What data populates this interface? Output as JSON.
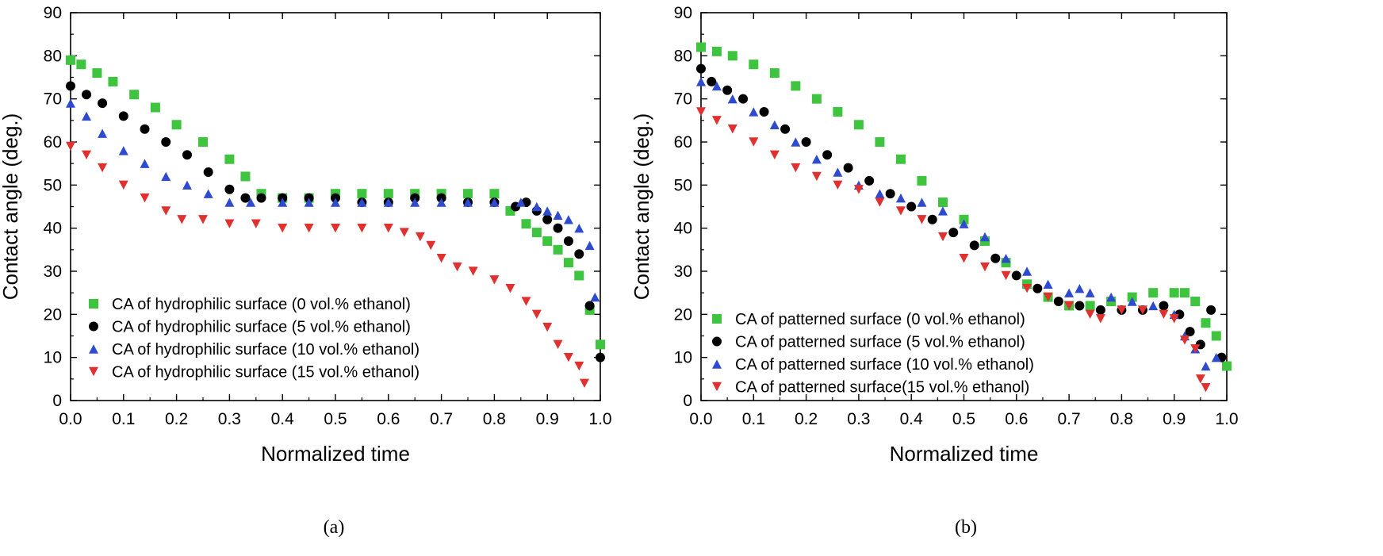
{
  "chart_data": [
    {
      "type": "scatter",
      "panel_label": "(a)",
      "title": "",
      "xlabel": "Normalized time",
      "ylabel": "Contact angle (deg.)",
      "xlim": [
        0,
        1
      ],
      "ylim": [
        0,
        90
      ],
      "xticks": [
        "0.0",
        "0.1",
        "0.2",
        "0.3",
        "0.4",
        "0.5",
        "0.6",
        "0.7",
        "0.8",
        "0.9",
        "1.0"
      ],
      "yticks": [
        "0",
        "10",
        "20",
        "30",
        "40",
        "50",
        "60",
        "70",
        "80",
        "90"
      ],
      "legend_position": "bottom-left",
      "series": [
        {
          "name": "CA of hydrophilic surface (0 vol.% ethanol)",
          "color": "#3ec43e",
          "marker": "square",
          "x": [
            0.0,
            0.02,
            0.05,
            0.08,
            0.12,
            0.16,
            0.2,
            0.25,
            0.3,
            0.33,
            0.36,
            0.4,
            0.45,
            0.5,
            0.55,
            0.6,
            0.65,
            0.7,
            0.75,
            0.8,
            0.83,
            0.86,
            0.88,
            0.9,
            0.92,
            0.94,
            0.96,
            0.98,
            1.0
          ],
          "y": [
            79,
            78,
            76,
            74,
            71,
            68,
            64,
            60,
            56,
            52,
            48,
            47,
            47,
            48,
            48,
            48,
            48,
            48,
            48,
            48,
            44,
            41,
            39,
            37,
            35,
            32,
            29,
            21,
            13
          ]
        },
        {
          "name": "CA of hydrophilic surface (5 vol.% ethanol)",
          "color": "#000000",
          "marker": "circle",
          "x": [
            0.0,
            0.03,
            0.06,
            0.1,
            0.14,
            0.18,
            0.22,
            0.26,
            0.3,
            0.33,
            0.36,
            0.4,
            0.45,
            0.5,
            0.55,
            0.6,
            0.65,
            0.7,
            0.75,
            0.8,
            0.84,
            0.86,
            0.88,
            0.9,
            0.92,
            0.94,
            0.96,
            0.98,
            1.0
          ],
          "y": [
            73,
            71,
            69,
            66,
            63,
            60,
            57,
            53,
            49,
            47,
            47,
            47,
            47,
            47,
            46,
            46,
            47,
            47,
            46,
            46,
            45,
            46,
            44,
            42,
            40,
            37,
            34,
            22,
            10
          ]
        },
        {
          "name": "CA of hydrophilic surface (10 vol.% ethanol)",
          "color": "#2e4bd0",
          "marker": "triangle-up",
          "x": [
            0.0,
            0.03,
            0.06,
            0.1,
            0.14,
            0.18,
            0.22,
            0.26,
            0.3,
            0.34,
            0.4,
            0.45,
            0.5,
            0.55,
            0.6,
            0.65,
            0.7,
            0.75,
            0.8,
            0.85,
            0.88,
            0.9,
            0.92,
            0.94,
            0.96,
            0.98,
            0.99
          ],
          "y": [
            69,
            66,
            62,
            58,
            55,
            52,
            50,
            48,
            46,
            46,
            46,
            46,
            46,
            46,
            46,
            46,
            46,
            46,
            46,
            46,
            45,
            44,
            43,
            42,
            40,
            36,
            24
          ]
        },
        {
          "name": "CA of hydrophilic surface (15 vol.% ethanol)",
          "color": "#e03030",
          "marker": "triangle-down",
          "x": [
            0.0,
            0.03,
            0.06,
            0.1,
            0.14,
            0.18,
            0.21,
            0.25,
            0.3,
            0.35,
            0.4,
            0.45,
            0.5,
            0.55,
            0.6,
            0.63,
            0.66,
            0.68,
            0.7,
            0.73,
            0.76,
            0.8,
            0.83,
            0.86,
            0.88,
            0.9,
            0.92,
            0.94,
            0.96,
            0.97
          ],
          "y": [
            59,
            57,
            54,
            50,
            47,
            44,
            42,
            42,
            41,
            41,
            40,
            40,
            40,
            40,
            40,
            39,
            38,
            36,
            33,
            31,
            30,
            28,
            26,
            23,
            20,
            17,
            13,
            10,
            8,
            4
          ]
        }
      ]
    },
    {
      "type": "scatter",
      "panel_label": "(b)",
      "title": "",
      "xlabel": "Normalized time",
      "ylabel": "Contact angle (deg.)",
      "xlim": [
        0,
        1
      ],
      "ylim": [
        0,
        90
      ],
      "xticks": [
        "0.0",
        "0.1",
        "0.2",
        "0.3",
        "0.4",
        "0.5",
        "0.6",
        "0.7",
        "0.8",
        "0.9",
        "1.0"
      ],
      "yticks": [
        "0",
        "10",
        "20",
        "30",
        "40",
        "50",
        "60",
        "70",
        "80",
        "90"
      ],
      "legend_position": "bottom-left",
      "series": [
        {
          "name": "CA of patterned surface (0 vol.% ethanol)",
          "color": "#3ec43e",
          "marker": "square",
          "x": [
            0.0,
            0.03,
            0.06,
            0.1,
            0.14,
            0.18,
            0.22,
            0.26,
            0.3,
            0.34,
            0.38,
            0.42,
            0.46,
            0.5,
            0.54,
            0.58,
            0.62,
            0.66,
            0.7,
            0.74,
            0.78,
            0.82,
            0.86,
            0.9,
            0.92,
            0.94,
            0.96,
            0.98,
            1.0
          ],
          "y": [
            82,
            81,
            80,
            78,
            76,
            73,
            70,
            67,
            64,
            60,
            56,
            51,
            46,
            42,
            37,
            32,
            27,
            24,
            22,
            22,
            23,
            24,
            25,
            25,
            25,
            23,
            18,
            15,
            8
          ]
        },
        {
          "name": "CA of patterned surface (5 vol.% ethanol)",
          "color": "#000000",
          "marker": "circle",
          "x": [
            0.0,
            0.02,
            0.05,
            0.08,
            0.12,
            0.16,
            0.2,
            0.24,
            0.28,
            0.32,
            0.36,
            0.4,
            0.44,
            0.48,
            0.52,
            0.56,
            0.6,
            0.64,
            0.68,
            0.72,
            0.76,
            0.8,
            0.84,
            0.88,
            0.91,
            0.93,
            0.95,
            0.97,
            0.99
          ],
          "y": [
            77,
            74,
            72,
            70,
            67,
            63,
            60,
            57,
            54,
            51,
            48,
            45,
            42,
            39,
            36,
            33,
            29,
            26,
            23,
            22,
            21,
            21,
            21,
            22,
            20,
            16,
            13,
            21,
            10
          ]
        },
        {
          "name": "CA of patterned surface (10 vol.% ethanol)",
          "color": "#2e4bd0",
          "marker": "triangle-up",
          "x": [
            0.0,
            0.03,
            0.06,
            0.1,
            0.14,
            0.18,
            0.22,
            0.26,
            0.3,
            0.34,
            0.38,
            0.42,
            0.46,
            0.5,
            0.54,
            0.58,
            0.62,
            0.66,
            0.7,
            0.72,
            0.74,
            0.78,
            0.82,
            0.86,
            0.9,
            0.92,
            0.94,
            0.96,
            0.98
          ],
          "y": [
            74,
            73,
            70,
            67,
            64,
            60,
            56,
            53,
            50,
            48,
            47,
            46,
            44,
            41,
            38,
            33,
            30,
            27,
            25,
            26,
            25,
            24,
            23,
            22,
            20,
            15,
            12,
            8,
            10
          ]
        },
        {
          "name": "CA of patterned surface(15 vol.% ethanol)",
          "color": "#e03030",
          "marker": "triangle-down",
          "x": [
            0.0,
            0.03,
            0.06,
            0.1,
            0.14,
            0.18,
            0.22,
            0.26,
            0.3,
            0.34,
            0.38,
            0.42,
            0.46,
            0.5,
            0.54,
            0.58,
            0.62,
            0.66,
            0.7,
            0.74,
            0.76,
            0.8,
            0.84,
            0.88,
            0.9,
            0.92,
            0.94,
            0.95,
            0.96
          ],
          "y": [
            67,
            65,
            63,
            60,
            57,
            54,
            52,
            50,
            49,
            46,
            44,
            42,
            38,
            33,
            31,
            29,
            26,
            24,
            22,
            20,
            19,
            21,
            21,
            20,
            19,
            14,
            12,
            5,
            3
          ]
        }
      ]
    }
  ]
}
